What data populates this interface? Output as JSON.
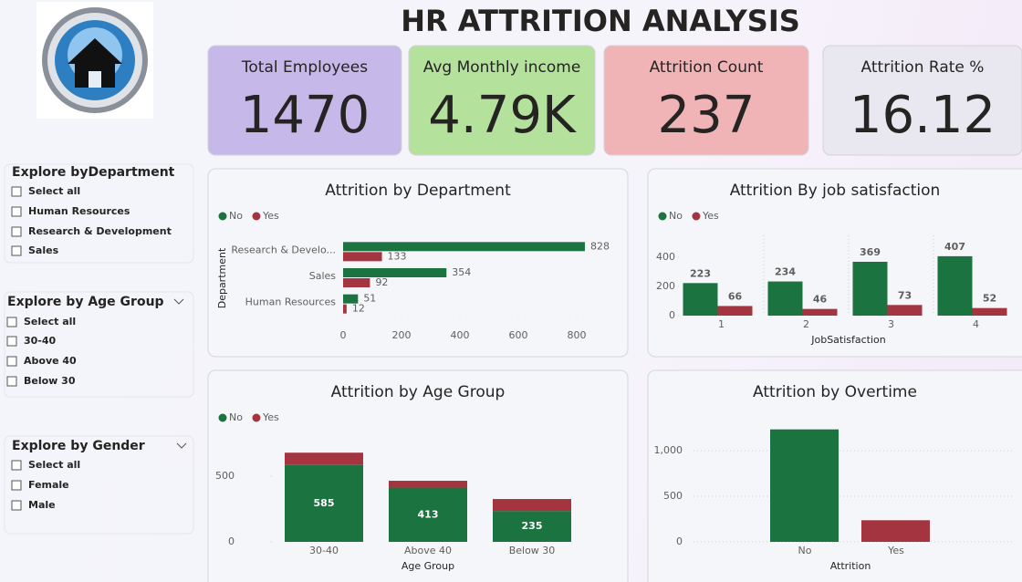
{
  "header": {
    "title": "HR ATTRITION ANALYSIS"
  },
  "kpis": [
    {
      "label": "Total Employees",
      "value": 1470
    },
    {
      "label": "Avg Monthly income",
      "value": "4.79K"
    },
    {
      "label": "Attrition Count",
      "value": 237
    },
    {
      "label": "Attrition Rate %",
      "value": 16.12
    }
  ],
  "slicers": [
    {
      "title": "Explore byDepartment",
      "items": [
        "Select all",
        "Human Resources",
        "Research & Development",
        "Sales"
      ]
    },
    {
      "title": "Explore by Age Group",
      "items": [
        "Select all",
        "30-40",
        "Above 40",
        "Below 30"
      ]
    },
    {
      "title": "Explore by Gender",
      "items": [
        "Select all",
        "Female",
        "Male"
      ]
    }
  ],
  "chart_data": [
    {
      "type": "hbar",
      "title": "Attrition by Department",
      "y_label": "Department",
      "categories": [
        "Research & Develo...",
        "Sales",
        "Human Resources"
      ],
      "series": [
        {
          "name": "No",
          "color": "#1b7340",
          "values": [
            828,
            354,
            51
          ]
        },
        {
          "name": "Yes",
          "color": "#a4343f",
          "values": [
            133,
            92,
            12
          ]
        }
      ],
      "xlim": [
        0,
        850
      ],
      "xticks": [
        0,
        200,
        400,
        600,
        800
      ]
    },
    {
      "type": "bar",
      "title": "Attrition By job satisfaction",
      "x_label": "JobSatisfaction",
      "categories": [
        "1",
        "2",
        "3",
        "4"
      ],
      "series": [
        {
          "name": "No",
          "color": "#1b7340",
          "values": [
            223,
            234,
            369,
            407
          ]
        },
        {
          "name": "Yes",
          "color": "#a4343f",
          "values": [
            66,
            46,
            73,
            52
          ]
        }
      ],
      "ylim": [
        0,
        550
      ],
      "yticks": [
        0,
        200,
        400
      ]
    },
    {
      "type": "stacked",
      "title": "Attrition by Age Group",
      "x_label": "Age Group",
      "categories": [
        "30-40",
        "Above 40",
        "Below 30"
      ],
      "series": [
        {
          "name": "No",
          "color": "#1b7340",
          "values": [
            585,
            413,
            235
          ]
        },
        {
          "name": "Yes",
          "color": "#a4343f",
          "values": [
            94,
            52,
            91
          ]
        }
      ],
      "ylim": [
        0,
        750
      ],
      "yticks": [
        0,
        500
      ]
    },
    {
      "type": "column",
      "title": "Attrition by Overtime",
      "x_label": "Attrition",
      "categories": [
        "No",
        "Yes"
      ],
      "values": [
        1233,
        237
      ],
      "colors": [
        "#1b7340",
        "#a4343f"
      ],
      "ylim": [
        0,
        1300
      ],
      "yticks": [
        0,
        500,
        {
          "value": 1000,
          "label": "1,000"
        }
      ],
      "grid": true
    }
  ]
}
